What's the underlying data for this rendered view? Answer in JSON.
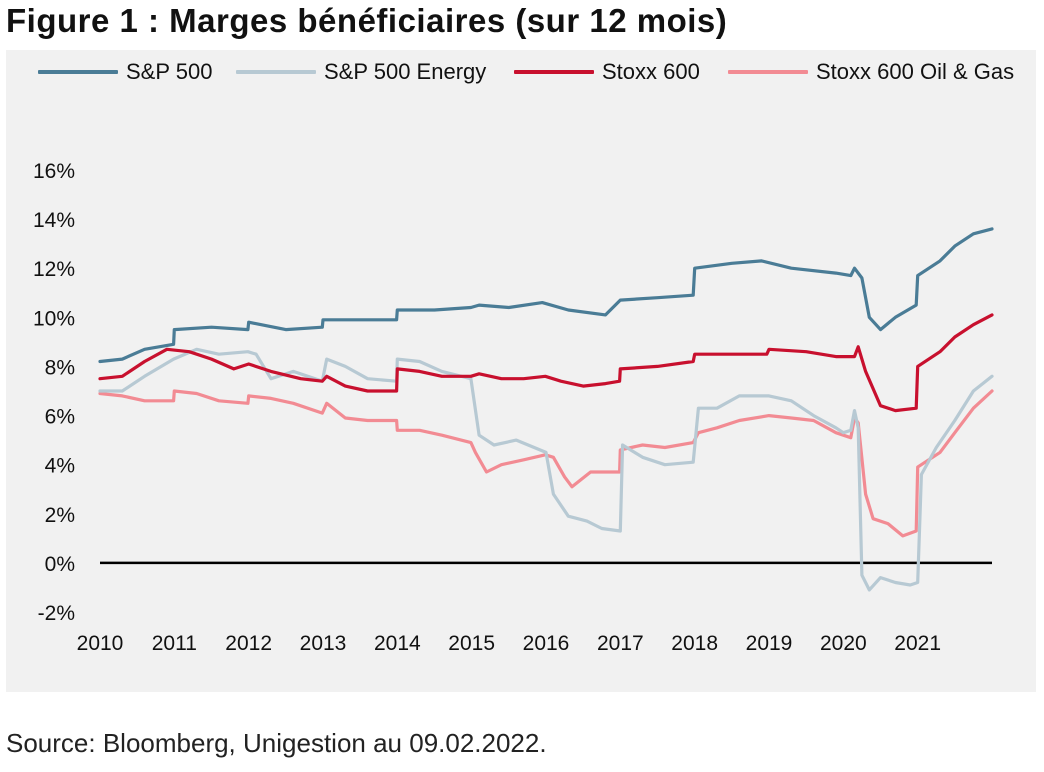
{
  "title": "Figure 1 : Marges bénéficiaires (sur 12 mois)",
  "source": "Source: Bloomberg, Unigestion au 09.02.2022.",
  "chart_data": {
    "type": "line",
    "title": "Figure 1 : Marges bénéficiaires (sur 12 mois)",
    "xlabel": "",
    "ylabel": "",
    "x_ticks": [
      "2010",
      "2011",
      "2012",
      "2013",
      "2014",
      "2015",
      "2016",
      "2017",
      "2018",
      "2019",
      "2020",
      "2021"
    ],
    "xlim": [
      2010,
      2022
    ],
    "y_ticks": [
      "-2%",
      "0%",
      "2%",
      "4%",
      "6%",
      "8%",
      "10%",
      "12%",
      "14%",
      "16%"
    ],
    "ylim": [
      -2,
      16
    ],
    "grid": false,
    "zero_line": true,
    "legend_position": "top",
    "series": [
      {
        "name": "S&P 500",
        "color": "#4a7c96",
        "points": [
          [
            2010.0,
            8.2
          ],
          [
            2010.3,
            8.3
          ],
          [
            2010.6,
            8.7
          ],
          [
            2010.99,
            8.9
          ],
          [
            2011.0,
            9.5
          ],
          [
            2011.5,
            9.6
          ],
          [
            2011.99,
            9.5
          ],
          [
            2012.0,
            9.8
          ],
          [
            2012.5,
            9.5
          ],
          [
            2012.99,
            9.6
          ],
          [
            2013.0,
            9.9
          ],
          [
            2013.5,
            9.9
          ],
          [
            2013.99,
            9.9
          ],
          [
            2014.0,
            10.3
          ],
          [
            2014.5,
            10.3
          ],
          [
            2014.99,
            10.4
          ],
          [
            2015.1,
            10.5
          ],
          [
            2015.5,
            10.4
          ],
          [
            2015.95,
            10.6
          ],
          [
            2016.3,
            10.3
          ],
          [
            2016.8,
            10.1
          ],
          [
            2017.0,
            10.7
          ],
          [
            2017.5,
            10.8
          ],
          [
            2017.98,
            10.9
          ],
          [
            2018.0,
            12.0
          ],
          [
            2018.5,
            12.2
          ],
          [
            2018.9,
            12.3
          ],
          [
            2019.3,
            12.0
          ],
          [
            2019.9,
            11.8
          ],
          [
            2020.1,
            11.7
          ],
          [
            2020.15,
            12.0
          ],
          [
            2020.25,
            11.6
          ],
          [
            2020.35,
            10.0
          ],
          [
            2020.5,
            9.5
          ],
          [
            2020.7,
            10.0
          ],
          [
            2020.98,
            10.5
          ],
          [
            2021.0,
            11.7
          ],
          [
            2021.3,
            12.3
          ],
          [
            2021.5,
            12.9
          ],
          [
            2021.75,
            13.4
          ],
          [
            2022.0,
            13.6
          ]
        ]
      },
      {
        "name": "S&P 500 Energy",
        "color": "#b7c9d3",
        "points": [
          [
            2010.0,
            7.0
          ],
          [
            2010.3,
            7.0
          ],
          [
            2010.6,
            7.6
          ],
          [
            2010.99,
            8.3
          ],
          [
            2011.3,
            8.7
          ],
          [
            2011.6,
            8.5
          ],
          [
            2011.99,
            8.6
          ],
          [
            2012.1,
            8.5
          ],
          [
            2012.3,
            7.5
          ],
          [
            2012.6,
            7.8
          ],
          [
            2012.99,
            7.4
          ],
          [
            2013.05,
            8.3
          ],
          [
            2013.3,
            8.0
          ],
          [
            2013.6,
            7.5
          ],
          [
            2013.99,
            7.4
          ],
          [
            2014.0,
            8.3
          ],
          [
            2014.3,
            8.2
          ],
          [
            2014.6,
            7.8
          ],
          [
            2014.99,
            7.5
          ],
          [
            2015.1,
            5.2
          ],
          [
            2015.3,
            4.8
          ],
          [
            2015.6,
            5.0
          ],
          [
            2016.0,
            4.5
          ],
          [
            2016.1,
            2.8
          ],
          [
            2016.3,
            1.9
          ],
          [
            2016.55,
            1.7
          ],
          [
            2016.75,
            1.4
          ],
          [
            2017.0,
            1.3
          ],
          [
            2017.03,
            4.8
          ],
          [
            2017.3,
            4.3
          ],
          [
            2017.6,
            4.0
          ],
          [
            2017.98,
            4.1
          ],
          [
            2018.05,
            6.3
          ],
          [
            2018.3,
            6.3
          ],
          [
            2018.6,
            6.8
          ],
          [
            2019.0,
            6.8
          ],
          [
            2019.3,
            6.6
          ],
          [
            2019.6,
            6.0
          ],
          [
            2019.9,
            5.5
          ],
          [
            2020.0,
            5.3
          ],
          [
            2020.1,
            5.4
          ],
          [
            2020.15,
            6.2
          ],
          [
            2020.2,
            5.5
          ],
          [
            2020.25,
            -0.5
          ],
          [
            2020.35,
            -1.1
          ],
          [
            2020.5,
            -0.6
          ],
          [
            2020.7,
            -0.8
          ],
          [
            2020.9,
            -0.9
          ],
          [
            2021.0,
            -0.8
          ],
          [
            2021.05,
            3.6
          ],
          [
            2021.25,
            4.7
          ],
          [
            2021.5,
            5.8
          ],
          [
            2021.75,
            7.0
          ],
          [
            2022.0,
            7.6
          ]
        ]
      },
      {
        "name": "Stoxx 600",
        "color": "#c8102e",
        "points": [
          [
            2010.0,
            7.5
          ],
          [
            2010.3,
            7.6
          ],
          [
            2010.6,
            8.2
          ],
          [
            2010.9,
            8.7
          ],
          [
            2011.2,
            8.6
          ],
          [
            2011.5,
            8.3
          ],
          [
            2011.8,
            7.9
          ],
          [
            2012.0,
            8.1
          ],
          [
            2012.3,
            7.8
          ],
          [
            2012.7,
            7.5
          ],
          [
            2012.99,
            7.4
          ],
          [
            2013.05,
            7.6
          ],
          [
            2013.3,
            7.2
          ],
          [
            2013.6,
            7.0
          ],
          [
            2013.99,
            7.0
          ],
          [
            2014.0,
            7.9
          ],
          [
            2014.3,
            7.8
          ],
          [
            2014.6,
            7.6
          ],
          [
            2014.99,
            7.6
          ],
          [
            2015.1,
            7.7
          ],
          [
            2015.4,
            7.5
          ],
          [
            2015.7,
            7.5
          ],
          [
            2015.99,
            7.6
          ],
          [
            2016.2,
            7.4
          ],
          [
            2016.5,
            7.2
          ],
          [
            2016.8,
            7.3
          ],
          [
            2016.99,
            7.4
          ],
          [
            2017.0,
            7.9
          ],
          [
            2017.5,
            8.0
          ],
          [
            2017.98,
            8.2
          ],
          [
            2018.0,
            8.5
          ],
          [
            2018.5,
            8.5
          ],
          [
            2018.97,
            8.5
          ],
          [
            2019.0,
            8.7
          ],
          [
            2019.5,
            8.6
          ],
          [
            2019.9,
            8.4
          ],
          [
            2020.15,
            8.4
          ],
          [
            2020.2,
            8.8
          ],
          [
            2020.3,
            7.8
          ],
          [
            2020.5,
            6.4
          ],
          [
            2020.7,
            6.2
          ],
          [
            2020.98,
            6.3
          ],
          [
            2021.0,
            8.0
          ],
          [
            2021.3,
            8.6
          ],
          [
            2021.5,
            9.2
          ],
          [
            2021.75,
            9.7
          ],
          [
            2022.0,
            10.1
          ]
        ]
      },
      {
        "name": "Stoxx 600 Oil & Gas",
        "color": "#f28b93",
        "points": [
          [
            2010.0,
            6.9
          ],
          [
            2010.3,
            6.8
          ],
          [
            2010.6,
            6.6
          ],
          [
            2010.99,
            6.6
          ],
          [
            2011.0,
            7.0
          ],
          [
            2011.3,
            6.9
          ],
          [
            2011.6,
            6.6
          ],
          [
            2011.99,
            6.5
          ],
          [
            2012.0,
            6.8
          ],
          [
            2012.3,
            6.7
          ],
          [
            2012.6,
            6.5
          ],
          [
            2012.99,
            6.1
          ],
          [
            2013.05,
            6.5
          ],
          [
            2013.3,
            5.9
          ],
          [
            2013.6,
            5.8
          ],
          [
            2013.99,
            5.8
          ],
          [
            2014.0,
            5.4
          ],
          [
            2014.3,
            5.4
          ],
          [
            2014.6,
            5.2
          ],
          [
            2014.99,
            4.9
          ],
          [
            2015.05,
            4.5
          ],
          [
            2015.2,
            3.7
          ],
          [
            2015.4,
            4.0
          ],
          [
            2015.7,
            4.2
          ],
          [
            2015.99,
            4.4
          ],
          [
            2016.1,
            4.3
          ],
          [
            2016.25,
            3.5
          ],
          [
            2016.35,
            3.1
          ],
          [
            2016.6,
            3.7
          ],
          [
            2016.99,
            3.7
          ],
          [
            2017.0,
            4.6
          ],
          [
            2017.3,
            4.8
          ],
          [
            2017.6,
            4.7
          ],
          [
            2017.98,
            4.9
          ],
          [
            2018.05,
            5.3
          ],
          [
            2018.3,
            5.5
          ],
          [
            2018.6,
            5.8
          ],
          [
            2019.0,
            6.0
          ],
          [
            2019.3,
            5.9
          ],
          [
            2019.6,
            5.8
          ],
          [
            2019.9,
            5.3
          ],
          [
            2020.1,
            5.1
          ],
          [
            2020.15,
            5.9
          ],
          [
            2020.2,
            5.7
          ],
          [
            2020.3,
            2.8
          ],
          [
            2020.4,
            1.8
          ],
          [
            2020.6,
            1.6
          ],
          [
            2020.8,
            1.1
          ],
          [
            2020.98,
            1.3
          ],
          [
            2021.0,
            3.9
          ],
          [
            2021.3,
            4.5
          ],
          [
            2021.5,
            5.3
          ],
          [
            2021.75,
            6.3
          ],
          [
            2022.0,
            7.0
          ]
        ]
      }
    ]
  }
}
